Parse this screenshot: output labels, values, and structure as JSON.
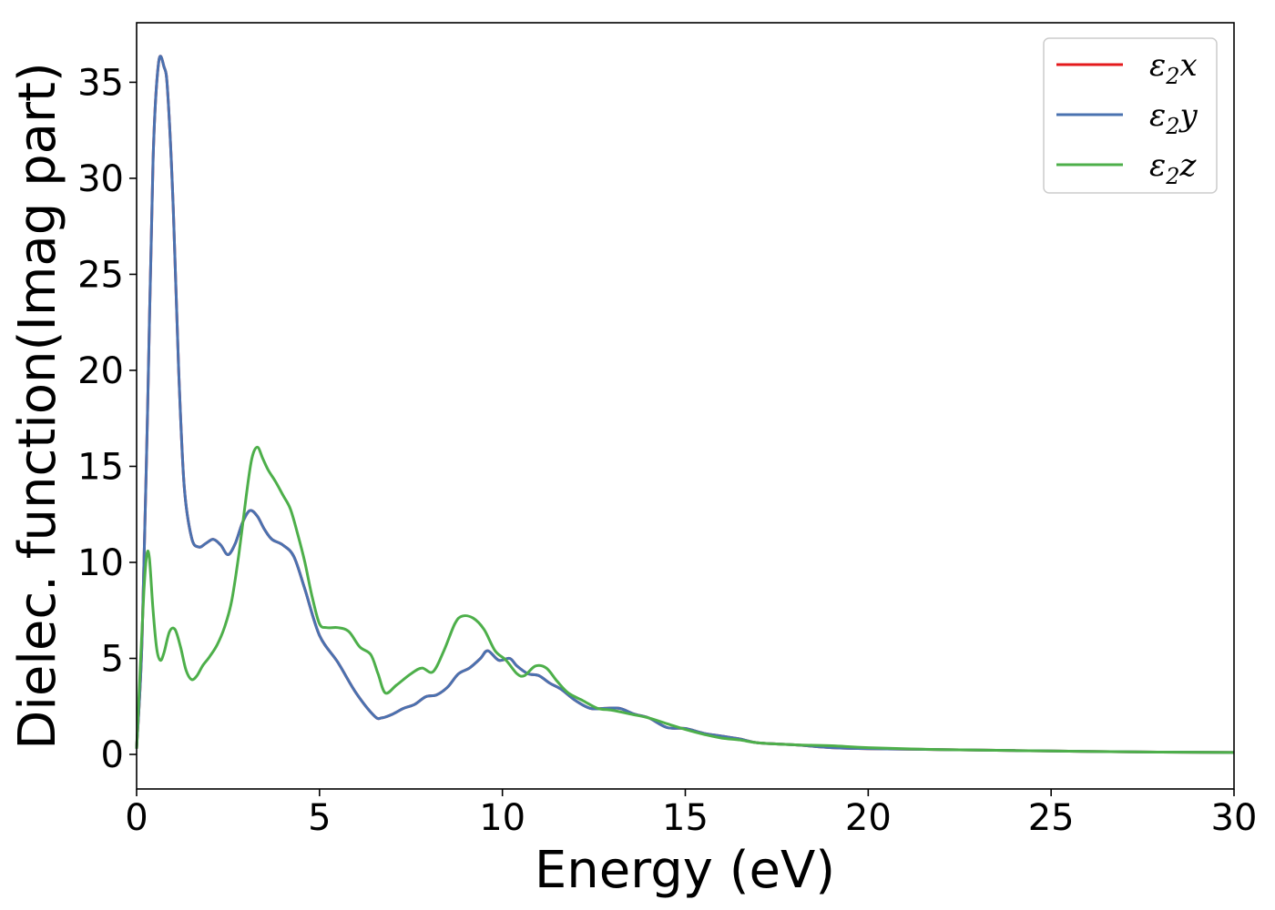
{
  "chart_data": {
    "type": "line",
    "title": "",
    "xlabel": "Energy (eV)",
    "ylabel": "Dielec. function(Imag part)",
    "xlim": [
      0,
      30
    ],
    "ylim": [
      -1.8,
      38.1
    ],
    "xticks": [
      "0",
      "5",
      "10",
      "15",
      "20",
      "25",
      "30"
    ],
    "yticks": [
      "0",
      "5",
      "10",
      "15",
      "20",
      "25",
      "30",
      "35"
    ],
    "grid": false,
    "legend_position": "top-right",
    "series": [
      {
        "name": "ε₂x",
        "legend_sub": "2",
        "legend_base": "ε",
        "legend_suffix": "x",
        "color": "#e41a1c",
        "x": [
          0,
          0.15,
          0.3,
          0.45,
          0.6,
          0.75,
          0.85,
          1.0,
          1.15,
          1.3,
          1.5,
          1.7,
          1.9,
          2.1,
          2.3,
          2.5,
          2.7,
          2.9,
          3.1,
          3.3,
          3.5,
          3.7,
          4.0,
          4.3,
          4.6,
          5.0,
          5.5,
          6.0,
          6.5,
          6.7,
          7.0,
          7.3,
          7.6,
          7.9,
          8.2,
          8.5,
          8.8,
          9.1,
          9.4,
          9.6,
          9.9,
          10.2,
          10.4,
          10.7,
          11.0,
          11.3,
          11.6,
          12.0,
          12.4,
          12.8,
          13.2,
          13.6,
          14.0,
          14.5,
          15.0,
          15.5,
          16.0,
          16.5,
          17.0,
          18.0,
          19.0,
          20.0,
          22.0,
          24.0,
          26.0,
          28.0,
          30.0
        ],
        "y": [
          0.3,
          6.0,
          18.0,
          31.0,
          36.0,
          35.8,
          34.5,
          28.5,
          20.0,
          14.0,
          11.3,
          10.8,
          11.0,
          11.2,
          10.9,
          10.4,
          11.0,
          12.1,
          12.7,
          12.4,
          11.7,
          11.2,
          10.9,
          10.3,
          8.6,
          6.2,
          4.8,
          3.2,
          2.0,
          1.9,
          2.1,
          2.4,
          2.6,
          3.0,
          3.1,
          3.5,
          4.2,
          4.5,
          5.0,
          5.4,
          4.9,
          5.0,
          4.6,
          4.2,
          4.1,
          3.7,
          3.4,
          2.8,
          2.4,
          2.4,
          2.4,
          2.1,
          1.9,
          1.4,
          1.35,
          1.1,
          0.95,
          0.8,
          0.6,
          0.5,
          0.35,
          0.3,
          0.25,
          0.2,
          0.15,
          0.12,
          0.1
        ]
      },
      {
        "name": "ε₂y",
        "legend_sub": "2",
        "legend_base": "ε",
        "legend_suffix": "y",
        "color": "#4a72b0",
        "x": [
          0,
          0.15,
          0.3,
          0.45,
          0.6,
          0.75,
          0.85,
          1.0,
          1.15,
          1.3,
          1.5,
          1.7,
          1.9,
          2.1,
          2.3,
          2.5,
          2.7,
          2.9,
          3.1,
          3.3,
          3.5,
          3.7,
          4.0,
          4.3,
          4.6,
          5.0,
          5.5,
          6.0,
          6.5,
          6.7,
          7.0,
          7.3,
          7.6,
          7.9,
          8.2,
          8.5,
          8.8,
          9.1,
          9.4,
          9.6,
          9.9,
          10.2,
          10.4,
          10.7,
          11.0,
          11.3,
          11.6,
          12.0,
          12.4,
          12.8,
          13.2,
          13.6,
          14.0,
          14.5,
          15.0,
          15.5,
          16.0,
          16.5,
          17.0,
          18.0,
          19.0,
          20.0,
          22.0,
          24.0,
          26.0,
          28.0,
          30.0
        ],
        "y": [
          0.3,
          6.0,
          18.0,
          31.0,
          36.0,
          35.8,
          34.5,
          28.5,
          20.0,
          14.0,
          11.3,
          10.8,
          11.0,
          11.2,
          10.9,
          10.4,
          11.0,
          12.1,
          12.7,
          12.4,
          11.7,
          11.2,
          10.9,
          10.3,
          8.6,
          6.2,
          4.8,
          3.2,
          2.0,
          1.9,
          2.1,
          2.4,
          2.6,
          3.0,
          3.1,
          3.5,
          4.2,
          4.5,
          5.0,
          5.4,
          4.9,
          5.0,
          4.6,
          4.2,
          4.1,
          3.7,
          3.4,
          2.8,
          2.4,
          2.4,
          2.4,
          2.1,
          1.9,
          1.4,
          1.35,
          1.1,
          0.95,
          0.8,
          0.6,
          0.5,
          0.35,
          0.3,
          0.25,
          0.2,
          0.15,
          0.12,
          0.1
        ]
      },
      {
        "name": "ε₂z",
        "legend_sub": "2",
        "legend_base": "ε",
        "legend_suffix": "z",
        "color": "#4daf4a",
        "x": [
          0,
          0.1,
          0.2,
          0.28,
          0.35,
          0.45,
          0.55,
          0.65,
          0.75,
          0.9,
          1.05,
          1.2,
          1.35,
          1.5,
          1.65,
          1.8,
          2.0,
          2.2,
          2.4,
          2.6,
          2.8,
          3.0,
          3.15,
          3.3,
          3.45,
          3.6,
          3.8,
          4.0,
          4.2,
          4.4,
          4.6,
          4.8,
          5.0,
          5.2,
          5.5,
          5.8,
          6.1,
          6.4,
          6.6,
          6.8,
          7.1,
          7.5,
          7.8,
          8.1,
          8.4,
          8.7,
          8.9,
          9.2,
          9.5,
          9.8,
          10.1,
          10.4,
          10.6,
          10.9,
          11.2,
          11.5,
          11.8,
          12.2,
          12.6,
          13.0,
          13.5,
          14.0,
          14.5,
          15.0,
          15.5,
          16.0,
          16.5,
          17.0,
          18.0,
          19.0,
          20.0,
          22.0,
          24.0,
          26.0,
          28.0,
          30.0
        ],
        "y": [
          0.3,
          4.5,
          8.5,
          10.4,
          10.2,
          7.5,
          5.5,
          4.9,
          5.3,
          6.4,
          6.5,
          5.6,
          4.4,
          3.9,
          4.1,
          4.6,
          5.1,
          5.7,
          6.6,
          8.0,
          10.5,
          13.5,
          15.4,
          16.0,
          15.4,
          14.8,
          14.2,
          13.5,
          12.8,
          11.5,
          10.0,
          8.2,
          6.8,
          6.6,
          6.6,
          6.4,
          5.6,
          5.2,
          4.2,
          3.2,
          3.6,
          4.2,
          4.5,
          4.3,
          5.4,
          6.8,
          7.2,
          7.1,
          6.5,
          5.4,
          4.9,
          4.2,
          4.1,
          4.6,
          4.5,
          3.8,
          3.2,
          2.8,
          2.4,
          2.3,
          2.1,
          1.9,
          1.6,
          1.3,
          1.05,
          0.85,
          0.75,
          0.6,
          0.5,
          0.45,
          0.35,
          0.25,
          0.2,
          0.15,
          0.12,
          0.1
        ]
      }
    ]
  }
}
